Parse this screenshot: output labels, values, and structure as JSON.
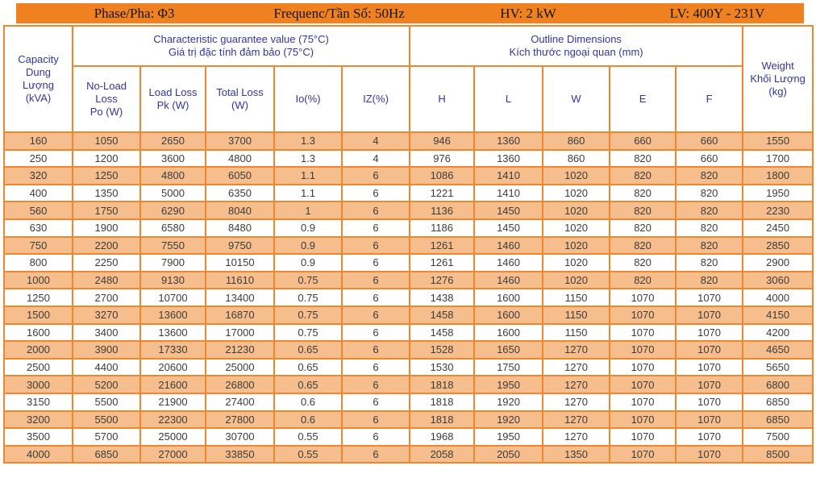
{
  "colors": {
    "banner_orange": "#F08121",
    "row_orange": "#F6BE8C",
    "border_orange": "#F0862F",
    "header_text_blue": "#34349B",
    "data_text": "#3C3C3C"
  },
  "banner": {
    "phase": "Phase/Pha: Φ3",
    "frequency": "Frequenc/Tần Số: 50Hz",
    "hv": "HV: 2 kW",
    "lv": "LV: 400Y - 231V"
  },
  "table": {
    "capacity_header": "Capacity\nDung\nLượng\n(kVA)",
    "characteristic_group_header": "Characteristic guarantee value (75°C)\nGiá trị đặc tính đảm bảo (75°C)",
    "outline_group_header": "Outline Dimensions\nKích thước ngoại quan (mm)",
    "weight_header": "Weight\nKhối Lượng\n(kg)",
    "sub_headers": [
      "No-Load\nLoss\nPo (W)",
      "Load Loss\nPk (W)",
      "Total Loss\n(W)",
      "Io(%)",
      "IZ(%)",
      "H",
      "L",
      "W",
      "E",
      "F"
    ],
    "rows": [
      [
        160,
        1050,
        2650,
        3700,
        1.3,
        4,
        946,
        1360,
        860,
        660,
        660,
        1550
      ],
      [
        250,
        1200,
        3600,
        4800,
        1.3,
        4,
        976,
        1360,
        860,
        820,
        660,
        1700
      ],
      [
        320,
        1250,
        4800,
        6050,
        1.1,
        6,
        1086,
        1410,
        1020,
        820,
        820,
        1800
      ],
      [
        400,
        1350,
        5000,
        6350,
        1.1,
        6,
        1221,
        1410,
        1020,
        820,
        820,
        1950
      ],
      [
        560,
        1750,
        6290,
        8040,
        1,
        6,
        1136,
        1450,
        1020,
        820,
        820,
        2230
      ],
      [
        630,
        1900,
        6580,
        8480,
        0.9,
        6,
        1186,
        1450,
        1020,
        820,
        820,
        2450
      ],
      [
        750,
        2200,
        7550,
        9750,
        0.9,
        6,
        1261,
        1460,
        1020,
        820,
        820,
        2850
      ],
      [
        800,
        2250,
        7900,
        10150,
        0.9,
        6,
        1261,
        1460,
        1020,
        820,
        820,
        2900
      ],
      [
        1000,
        2480,
        9130,
        11610,
        0.75,
        6,
        1276,
        1460,
        1020,
        820,
        820,
        3060
      ],
      [
        1250,
        2700,
        10700,
        13400,
        0.75,
        6,
        1438,
        1600,
        1150,
        1070,
        1070,
        4000
      ],
      [
        1500,
        3270,
        13600,
        16870,
        0.75,
        6,
        1458,
        1600,
        1150,
        1070,
        1070,
        4150
      ],
      [
        1600,
        3400,
        13600,
        17000,
        0.75,
        6,
        1458,
        1600,
        1150,
        1070,
        1070,
        4200
      ],
      [
        2000,
        3900,
        17330,
        21230,
        0.65,
        6,
        1528,
        1650,
        1270,
        1070,
        1070,
        4650
      ],
      [
        2500,
        4400,
        20600,
        25000,
        0.65,
        6,
        1530,
        1750,
        1270,
        1070,
        1070,
        5650
      ],
      [
        3000,
        5200,
        21600,
        26800,
        0.65,
        6,
        1818,
        1950,
        1270,
        1070,
        1070,
        6800
      ],
      [
        3150,
        5500,
        21900,
        27400,
        0.6,
        6,
        1818,
        1920,
        1270,
        1070,
        1070,
        6850
      ],
      [
        3200,
        5500,
        22300,
        27800,
        0.6,
        6,
        1818,
        1920,
        1270,
        1070,
        1070,
        6850
      ],
      [
        3500,
        5700,
        25000,
        30700,
        0.55,
        6,
        1968,
        1950,
        1270,
        1070,
        1070,
        7500
      ],
      [
        4000,
        6850,
        27000,
        33850,
        0.55,
        6,
        2058,
        2050,
        1350,
        1070,
        1070,
        8500
      ]
    ]
  }
}
